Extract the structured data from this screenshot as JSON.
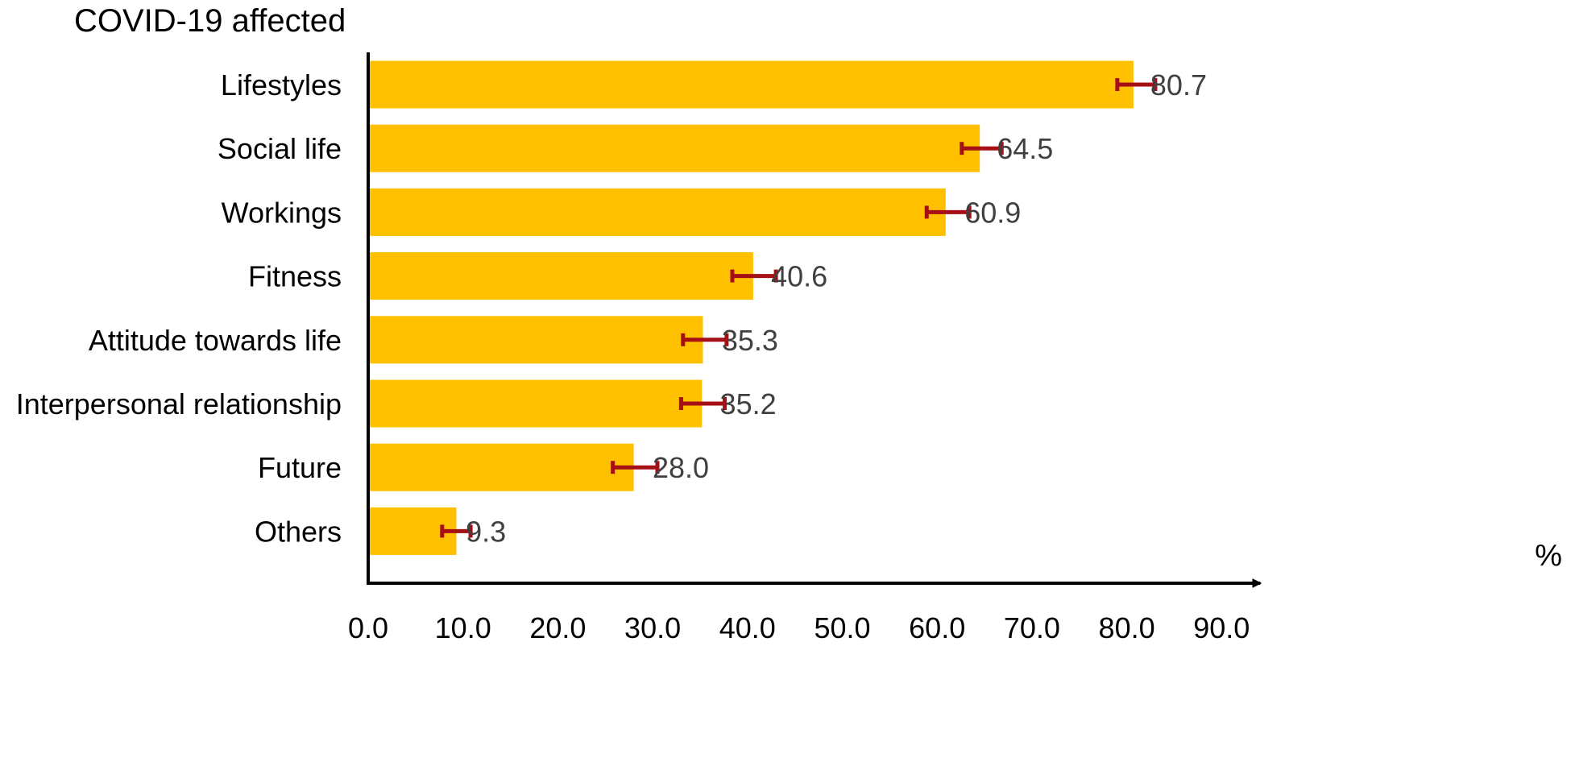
{
  "chart_data": {
    "type": "bar",
    "orientation": "horizontal",
    "title": "COVID-19 affected",
    "xlabel": "%",
    "ylabel": "",
    "xlim": [
      0,
      90
    ],
    "x_ticks": [
      "0.0",
      "10.0",
      "20.0",
      "30.0",
      "40.0",
      "50.0",
      "60.0",
      "70.0",
      "80.0",
      "90.0"
    ],
    "categories": [
      "Lifestyles",
      "Social life",
      "Workings",
      "Fitness",
      "Attitude towards life",
      "Interpersonal relationship",
      "Future",
      "Others"
    ],
    "values": [
      80.7,
      64.5,
      60.9,
      40.6,
      35.3,
      35.2,
      28.0,
      9.3
    ],
    "value_labels": [
      "80.7",
      "64.5",
      "60.9",
      "40.6",
      "35.3",
      "35.2",
      "28.0",
      "9.3"
    ],
    "error_low": [
      79.0,
      62.6,
      58.9,
      38.4,
      33.2,
      33.0,
      25.8,
      7.8
    ],
    "error_high": [
      83.0,
      66.8,
      63.4,
      43.0,
      37.8,
      37.6,
      30.5,
      10.8
    ],
    "grid": false,
    "legend": "none",
    "colors": {
      "bar": "#ffc000",
      "error_bar": "#a50f15",
      "axis": "#000000",
      "data_label": "#404040"
    }
  }
}
